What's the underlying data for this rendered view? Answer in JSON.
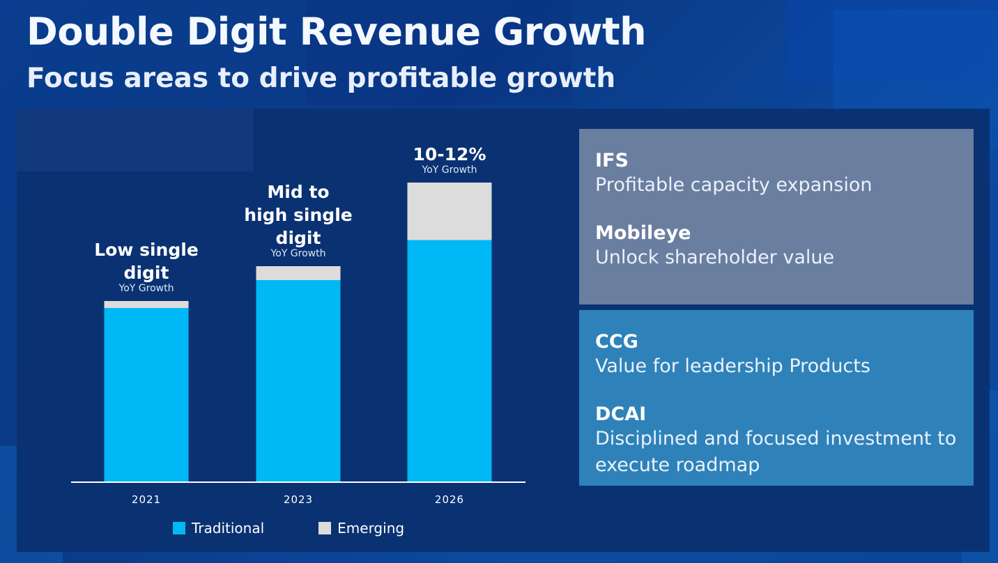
{
  "header": {
    "title": "Double Digit Revenue Growth",
    "subtitle": "Focus areas to drive profitable growth"
  },
  "colors": {
    "traditional": "#00b8f5",
    "emerging": "#dcdcdc",
    "axis": "#ffffff"
  },
  "chart_data": {
    "type": "bar",
    "stacked": true,
    "categories": [
      "2021",
      "2023",
      "2026"
    ],
    "series": [
      {
        "name": "Traditional",
        "values": [
          1.0,
          1.16,
          1.39
        ]
      },
      {
        "name": "Emerging",
        "values": [
          0.04,
          0.08,
          0.33
        ]
      }
    ],
    "bar_labels": [
      {
        "lines": [
          "Low single",
          "digit"
        ],
        "sub": "YoY Growth"
      },
      {
        "lines": [
          "Mid to",
          "high single",
          "digit"
        ],
        "sub": "YoY Growth"
      },
      {
        "lines": [
          "10-12%"
        ],
        "sub": "YoY Growth"
      }
    ],
    "legend": [
      "Traditional",
      "Emerging"
    ],
    "legend_position": "bottom",
    "grid": false,
    "ylim": [
      0,
      1.75
    ]
  },
  "focus_areas": {
    "top": [
      {
        "name": "IFS",
        "desc": "Profitable capacity expansion"
      },
      {
        "name": "Mobileye",
        "desc": "Unlock shareholder value"
      }
    ],
    "bottom": [
      {
        "name": "CCG",
        "desc": "Value for leadership Products"
      },
      {
        "name": "DCAI",
        "desc": "Disciplined  and focused investment to execute roadmap"
      }
    ]
  }
}
